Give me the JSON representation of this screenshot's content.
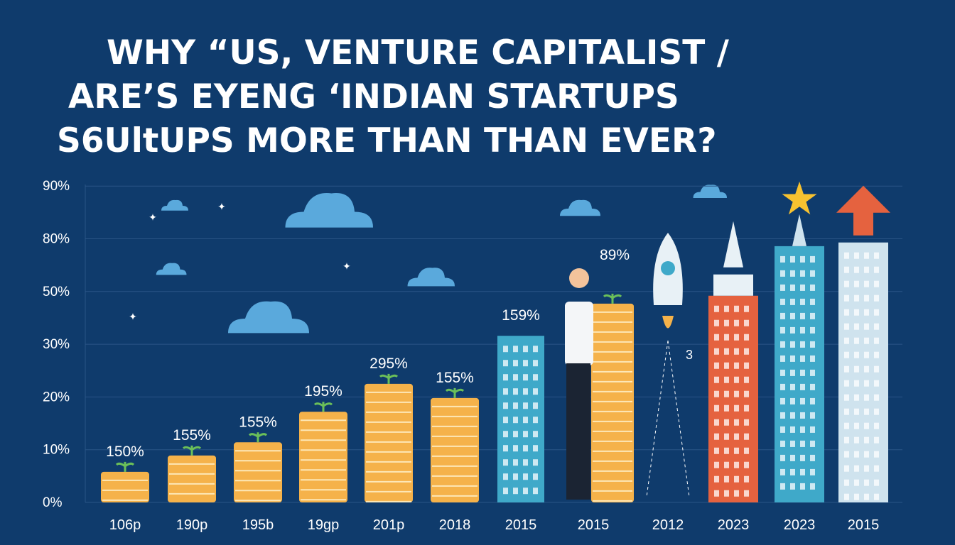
{
  "title_lines": [
    "WHY “US,  VENTURE CAPITALIST  /",
    "ARE’S EYENG ‘INDIAN STARTUPS",
    "S6UltUPS MORE THAN THAN EVER?"
  ],
  "chart_data": {
    "type": "bar",
    "title": "WHY “US,  VENTURE CAPITALIST / ARE’S EYENG ‘INDIAN STARTUPS S6ULTUPS MORE THAN THAN EVER?",
    "xlabel": "",
    "ylabel": "",
    "y_ticks": [
      "0%",
      "10%",
      "20%",
      "30%",
      "50%",
      "80%",
      "90%"
    ],
    "y_tick_values": [
      0,
      10,
      20,
      30,
      50,
      80,
      90
    ],
    "ylim": [
      0,
      90
    ],
    "grid": true,
    "categories": [
      "106p",
      "190p",
      "195b",
      "19gp",
      "201p",
      "2018",
      "2015",
      "2015",
      "2012",
      "2023",
      "2023",
      "2015"
    ],
    "values": [
      5.8,
      8.9,
      11.4,
      17.2,
      22.5,
      19.8,
      33.2,
      45.4,
      null,
      48.4,
      75.8,
      77.9
    ],
    "data_labels": [
      "150%",
      "155%",
      "155%",
      "195%",
      "295%",
      "155%",
      "159%",
      "89%",
      "3",
      "",
      "",
      ""
    ],
    "bar_styles": [
      "coins",
      "coins",
      "coins",
      "coins",
      "coins",
      "coins",
      "building-blue",
      "coins-person",
      "rocket",
      "tower-red",
      "tower-teal",
      "tower-light"
    ],
    "colors": {
      "background": "#0f3b6c",
      "coin": "#f5b24a",
      "coin_stripe": "#fde7b6",
      "building_blue": "#3fa9c9",
      "tower_red": "#e5623f",
      "tower_light": "#cfe3ee",
      "cloud": "#5aa9dc",
      "grid": "#2a5486"
    }
  }
}
